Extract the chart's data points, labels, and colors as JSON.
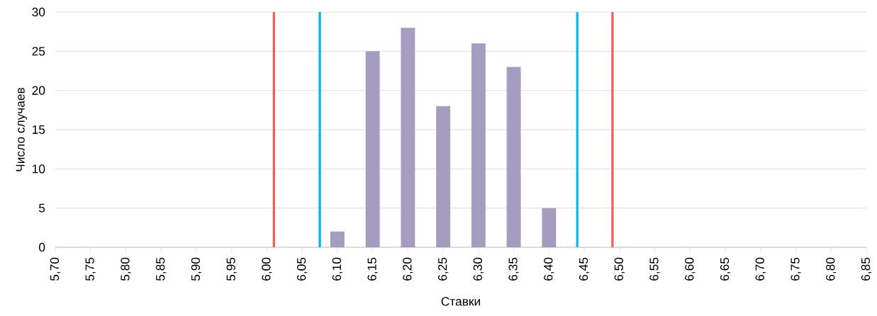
{
  "chart_data": {
    "type": "bar",
    "xlabel": "Ставки",
    "ylabel": "Число случаев",
    "x": [
      6.1,
      6.15,
      6.2,
      6.25,
      6.3,
      6.35,
      6.4
    ],
    "values": [
      2,
      25,
      28,
      18,
      26,
      23,
      5
    ],
    "color": "#a59dc0",
    "xlim": [
      5.7,
      6.85
    ],
    "xticks": [
      {
        "value": 5.7,
        "label": "5,70"
      },
      {
        "value": 5.75,
        "label": "5,75"
      },
      {
        "value": 5.8,
        "label": "5,80"
      },
      {
        "value": 5.85,
        "label": "5,85"
      },
      {
        "value": 5.9,
        "label": "5,90"
      },
      {
        "value": 5.95,
        "label": "5,95"
      },
      {
        "value": 6.0,
        "label": "6,00"
      },
      {
        "value": 6.05,
        "label": "6,05"
      },
      {
        "value": 6.1,
        "label": "6,10"
      },
      {
        "value": 6.15,
        "label": "6,15"
      },
      {
        "value": 6.2,
        "label": "6,20"
      },
      {
        "value": 6.25,
        "label": "6,25"
      },
      {
        "value": 6.3,
        "label": "6,30"
      },
      {
        "value": 6.35,
        "label": "6,35"
      },
      {
        "value": 6.4,
        "label": "6,40"
      },
      {
        "value": 6.45,
        "label": "6,45"
      },
      {
        "value": 6.5,
        "label": "6,50"
      },
      {
        "value": 6.55,
        "label": "6,55"
      },
      {
        "value": 6.6,
        "label": "6,60"
      },
      {
        "value": 6.65,
        "label": "6,65"
      },
      {
        "value": 6.7,
        "label": "6,70"
      },
      {
        "value": 6.75,
        "label": "6,75"
      },
      {
        "value": 6.8,
        "label": "6,80"
      },
      {
        "value": 6.85,
        "label": "6,85"
      }
    ],
    "ylim": [
      0,
      30
    ],
    "yticks": [
      0,
      5,
      10,
      15,
      20,
      25,
      30
    ],
    "grid": "y",
    "ref_lines": [
      {
        "axis": "x",
        "value": 6.01,
        "color": "#f0605d"
      },
      {
        "axis": "x",
        "value": 6.075,
        "color": "#00b8f0"
      },
      {
        "axis": "x",
        "value": 6.44,
        "color": "#00b8f0"
      },
      {
        "axis": "x",
        "value": 6.49,
        "color": "#f0605d"
      }
    ]
  }
}
